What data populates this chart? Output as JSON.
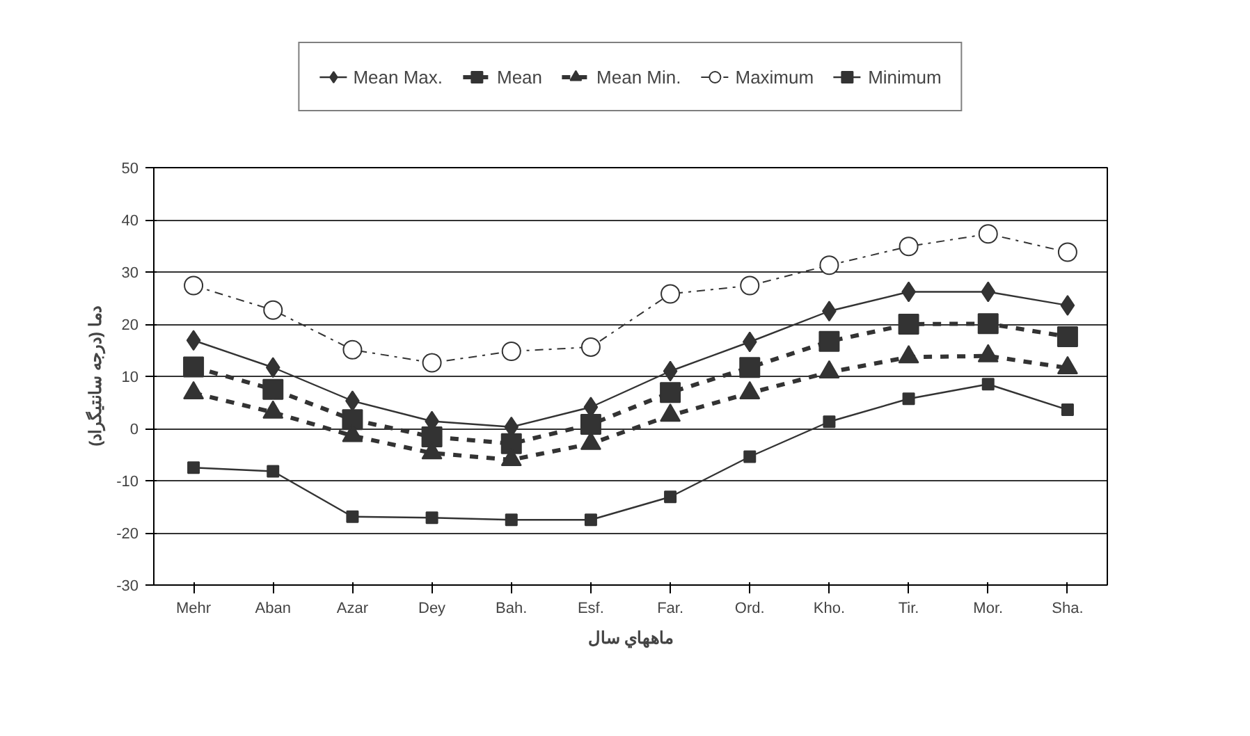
{
  "chart_data": {
    "type": "line",
    "categories": [
      "Mehr",
      "Aban",
      "Azar",
      "Dey",
      "Bah.",
      "Esf.",
      "Far.",
      "Ord.",
      "Kho.",
      "Tir.",
      "Mor.",
      "Sha."
    ],
    "xlabel": "ماههاي سال",
    "ylabel": "دما (درجه سانتيگراد)",
    "ylim": [
      -30,
      50
    ],
    "yticks": [
      -30,
      -20,
      -10,
      0,
      10,
      20,
      30,
      40,
      50
    ],
    "grid": "y",
    "legend": "top",
    "series": [
      {
        "name": "Mean Max.",
        "color": "#333333",
        "marker": "diamond",
        "line_style": "solid",
        "values": [
          16.9,
          11.7,
          5.3,
          1.4,
          0.3,
          4.1,
          11.0,
          16.6,
          22.5,
          26.2,
          26.2,
          23.6
        ]
      },
      {
        "name": "Mean",
        "color": "#333333",
        "marker": "square",
        "line_style": "dashed",
        "values": [
          11.8,
          7.5,
          1.7,
          -1.6,
          -2.9,
          0.8,
          6.9,
          11.7,
          16.7,
          20.0,
          20.1,
          17.6
        ]
      },
      {
        "name": "Mean Min.",
        "color": "#333333",
        "marker": "triangle",
        "line_style": "dashed",
        "values": [
          6.8,
          3.1,
          -1.4,
          -4.7,
          -6.0,
          -2.9,
          2.5,
          6.8,
          10.8,
          13.7,
          13.9,
          11.6
        ]
      },
      {
        "name": "Maximum",
        "color": "#333333",
        "marker": "circle",
        "line_style": "dashdot",
        "values": [
          27.4,
          22.7,
          15.1,
          12.6,
          14.8,
          15.6,
          25.8,
          27.4,
          31.3,
          34.9,
          37.3,
          33.8
        ]
      },
      {
        "name": "Minimum",
        "color": "#333333",
        "marker": "square",
        "line_style": "solid",
        "values": [
          -7.5,
          -8.2,
          -16.9,
          -17.1,
          -17.5,
          -17.5,
          -13.1,
          -5.4,
          1.3,
          5.7,
          8.5,
          3.6
        ]
      }
    ]
  }
}
